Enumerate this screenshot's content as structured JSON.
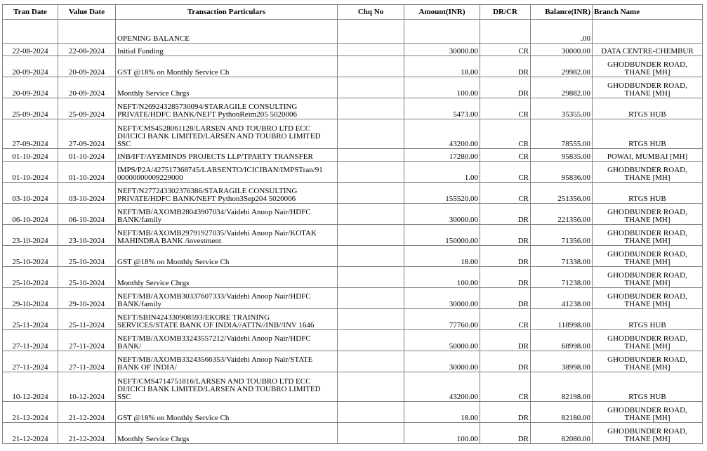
{
  "statement": {
    "columns": {
      "tran_date": "Tran Date",
      "value_date": "Value Date",
      "particulars": "Transaction Particulars",
      "chq_no": "Chq No",
      "amount": "Amount(INR)",
      "drcr": "DR/CR",
      "balance": "Balance(INR)",
      "branch": "Branch Name"
    },
    "rows": [
      {
        "tran_date": "",
        "value_date": "",
        "particulars": "OPENING BALANCE",
        "chq_no": "",
        "amount": "",
        "drcr": "",
        "balance": ".00",
        "branch": ""
      },
      {
        "tran_date": "22-08-2024",
        "value_date": "22-08-2024",
        "particulars": "Initial Funding",
        "chq_no": "",
        "amount": "30000.00",
        "drcr": "CR",
        "balance": "30000.00",
        "branch": "DATA CENTRE-CHEMBUR"
      },
      {
        "tran_date": "20-09-2024",
        "value_date": "20-09-2024",
        "particulars": "GST @18% on Monthly Service Ch",
        "chq_no": "",
        "amount": "18.00",
        "drcr": "DR",
        "balance": "29982.00",
        "branch": "GHODBUNDER ROAD,\nTHANE [MH]"
      },
      {
        "tran_date": "20-09-2024",
        "value_date": "20-09-2024",
        "particulars": "Monthly Service Chrgs",
        "chq_no": "",
        "amount": "100.00",
        "drcr": "DR",
        "balance": "29882.00",
        "branch": "GHODBUNDER ROAD,\nTHANE [MH]"
      },
      {
        "tran_date": "25-09-2024",
        "value_date": "25-09-2024",
        "particulars": "NEFT/N269243285730094/STARAGILE CONSULTING\nPRIVATE/HDFC BANK/NEFT    PythonReim205 5020006",
        "chq_no": "",
        "amount": "5473.00",
        "drcr": "CR",
        "balance": "35355.00",
        "branch": "RTGS HUB"
      },
      {
        "tran_date": "27-09-2024",
        "value_date": "27-09-2024",
        "particulars": "NEFT/CMS4528061128/LARSEN AND TOUBRO LTD ECC\nDI/ICICI BANK LIMITED/LARSEN AND TOUBRO LIMITED\nSSC",
        "chq_no": "",
        "amount": "43200.00",
        "drcr": "CR",
        "balance": "78555.00",
        "branch": "RTGS HUB"
      },
      {
        "tran_date": "01-10-2024",
        "value_date": "01-10-2024",
        "particulars": "INB/IFT/AYEMINDS PROJECTS LLP/TPARTY TRANSFER",
        "chq_no": "",
        "amount": "17280.00",
        "drcr": "CR",
        "balance": "95835.00",
        "branch": "POWAI, MUMBAI [MH]"
      },
      {
        "tran_date": "01-10-2024",
        "value_date": "01-10-2024",
        "particulars": "IMPS/P2A/427517368745/LARSENTO/ICICIBAN/IMPSTran/91\n00000000009229000",
        "chq_no": "",
        "amount": "1.00",
        "drcr": "CR",
        "balance": "95836.00",
        "branch": "GHODBUNDER ROAD,\nTHANE [MH]"
      },
      {
        "tran_date": "03-10-2024",
        "value_date": "03-10-2024",
        "particulars": "NEFT/N277243302376386/STARAGILE CONSULTING\nPRIVATE/HDFC BANK/NEFT    Python3Sep204 5020006",
        "chq_no": "",
        "amount": "155520.00",
        "drcr": "CR",
        "balance": "251356.00",
        "branch": "RTGS HUB"
      },
      {
        "tran_date": "06-10-2024",
        "value_date": "06-10-2024",
        "particulars": "NEFT/MB/AXOMB28043907034/Vaidehi Anoop Nair/HDFC\nBANK/family",
        "chq_no": "",
        "amount": "30000.00",
        "drcr": "DR",
        "balance": "221356.00",
        "branch": "GHODBUNDER ROAD,\nTHANE [MH]"
      },
      {
        "tran_date": "23-10-2024",
        "value_date": "23-10-2024",
        "particulars": "NEFT/MB/AXOMB29791927035/Vaidehi Anoop Nair/KOTAK\nMAHINDRA BANK /investment",
        "chq_no": "",
        "amount": "150000.00",
        "drcr": "DR",
        "balance": "71356.00",
        "branch": "GHODBUNDER ROAD,\nTHANE [MH]"
      },
      {
        "tran_date": "25-10-2024",
        "value_date": "25-10-2024",
        "particulars": "GST @18% on Monthly Service Ch",
        "chq_no": "",
        "amount": "18.00",
        "drcr": "DR",
        "balance": "71338.00",
        "branch": "GHODBUNDER ROAD,\nTHANE [MH]"
      },
      {
        "tran_date": "25-10-2024",
        "value_date": "25-10-2024",
        "particulars": "Monthly Service Chrgs",
        "chq_no": "",
        "amount": "100.00",
        "drcr": "DR",
        "balance": "71238.00",
        "branch": "GHODBUNDER ROAD,\nTHANE [MH]"
      },
      {
        "tran_date": "29-10-2024",
        "value_date": "29-10-2024",
        "particulars": "NEFT/MB/AXOMB30337607333/Vaidehi Anoop Nair/HDFC\nBANK/family",
        "chq_no": "",
        "amount": "30000.00",
        "drcr": "DR",
        "balance": "41238.00",
        "branch": "GHODBUNDER ROAD,\nTHANE [MH]"
      },
      {
        "tran_date": "25-11-2024",
        "value_date": "25-11-2024",
        "particulars": "NEFT/SBIN424330908593/EKORE TRAINING\nSERVICES/STATE BANK OF INDIA//ATTN//INB//INV 1646",
        "chq_no": "",
        "amount": "77760.00",
        "drcr": "CR",
        "balance": "118998.00",
        "branch": "RTGS HUB"
      },
      {
        "tran_date": "27-11-2024",
        "value_date": "27-11-2024",
        "particulars": "NEFT/MB/AXOMB33243557212/Vaidehi Anoop Nair/HDFC\nBANK/",
        "chq_no": "",
        "amount": "50000.00",
        "drcr": "DR",
        "balance": "68998.00",
        "branch": "GHODBUNDER ROAD,\nTHANE [MH]"
      },
      {
        "tran_date": "27-11-2024",
        "value_date": "27-11-2024",
        "particulars": "NEFT/MB/AXOMB33243566353/Vaidehi Anoop Nair/STATE\nBANK OF INDIA/",
        "chq_no": "",
        "amount": "30000.00",
        "drcr": "DR",
        "balance": "38998.00",
        "branch": "GHODBUNDER ROAD,\nTHANE [MH]"
      },
      {
        "tran_date": "10-12-2024",
        "value_date": "10-12-2024",
        "particulars": "NEFT/CMS4714751816/LARSEN AND TOUBRO LTD ECC\nDI/ICICI BANK LIMITED/LARSEN AND TOUBRO LIMITED\nSSC",
        "chq_no": "",
        "amount": "43200.00",
        "drcr": "CR",
        "balance": "82198.00",
        "branch": "RTGS HUB"
      },
      {
        "tran_date": "21-12-2024",
        "value_date": "21-12-2024",
        "particulars": "GST @18% on Monthly Service Ch",
        "chq_no": "",
        "amount": "18.00",
        "drcr": "DR",
        "balance": "82180.00",
        "branch": "GHODBUNDER ROAD,\nTHANE [MH]"
      },
      {
        "tran_date": "21-12-2024",
        "value_date": "21-12-2024",
        "particulars": "Monthly Service Chrgs",
        "chq_no": "",
        "amount": "100.00",
        "drcr": "DR",
        "balance": "82080.00",
        "branch": "GHODBUNDER ROAD,\nTHANE [MH]"
      }
    ]
  }
}
